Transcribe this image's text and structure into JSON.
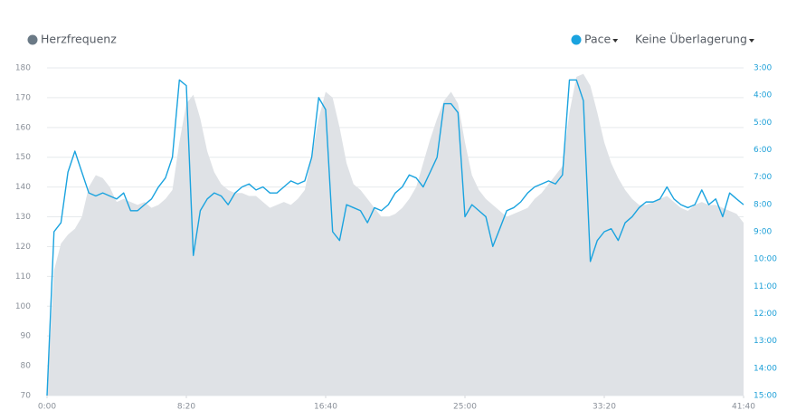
{
  "chart_data": {
    "type": "area",
    "x": [
      0,
      25,
      50,
      75,
      100,
      125,
      150,
      175,
      200,
      225,
      250,
      275,
      300,
      325,
      350,
      375,
      400,
      425,
      450,
      475,
      500,
      525,
      550,
      575,
      600,
      625,
      650,
      675,
      700,
      725,
      750,
      775,
      800,
      825,
      850,
      875,
      900,
      925,
      950,
      975,
      1000,
      1025,
      1050,
      1075,
      1100,
      1125,
      1150,
      1175,
      1200,
      1225,
      1250,
      1275,
      1300,
      1325,
      1350,
      1375,
      1400,
      1425,
      1450,
      1475,
      1500,
      1525,
      1550,
      1575,
      1600,
      1625,
      1650,
      1675,
      1700,
      1725,
      1750,
      1775,
      1800,
      1825,
      1850,
      1875,
      1900,
      1925,
      1950,
      1975,
      2000,
      2025,
      2050,
      2075,
      2100,
      2125,
      2150,
      2175,
      2200,
      2225,
      2250,
      2275,
      2300,
      2325,
      2350,
      2375,
      2400,
      2425,
      2450,
      2475,
      2500
    ],
    "series": [
      {
        "name": "Herzfrequenz",
        "type": "area",
        "color": "#dfe2e6",
        "legend_color": "#6b7a86",
        "axis": "y",
        "values": [
          70,
          112,
          121,
          124,
          126,
          130,
          140,
          144,
          143,
          140,
          135,
          136,
          135,
          134,
          135,
          133,
          134,
          136,
          139,
          155,
          168,
          171,
          163,
          152,
          145,
          141,
          139,
          138,
          138,
          137,
          137,
          135,
          133,
          134,
          135,
          134,
          136,
          139,
          150,
          163,
          172,
          170,
          160,
          148,
          141,
          139,
          136,
          133,
          130,
          130,
          131,
          133,
          136,
          140,
          148,
          156,
          163,
          169,
          172,
          168,
          155,
          144,
          139,
          136,
          134,
          132,
          130,
          131,
          132,
          133,
          136,
          138,
          141,
          144,
          147,
          165,
          177,
          178,
          174,
          165,
          155,
          148,
          143,
          139,
          136,
          134,
          134,
          135,
          136,
          137,
          135,
          133,
          132,
          134,
          135,
          134,
          134,
          133,
          132,
          131,
          128
        ]
      },
      {
        "name": "Pace",
        "type": "line",
        "color": "#1aa3df",
        "axis": "y2",
        "values": [
          15,
          9.0,
          8.67,
          6.82,
          6.05,
          6.82,
          7.58,
          7.69,
          7.58,
          7.69,
          7.8,
          7.58,
          8.23,
          8.23,
          8.01,
          7.8,
          7.36,
          7.03,
          6.27,
          3.44,
          3.65,
          9.87,
          8.23,
          7.8,
          7.58,
          7.69,
          8.01,
          7.58,
          7.36,
          7.25,
          7.47,
          7.36,
          7.58,
          7.58,
          7.36,
          7.14,
          7.25,
          7.14,
          6.27,
          4.09,
          4.53,
          9.0,
          9.32,
          8.01,
          8.12,
          8.23,
          8.67,
          8.12,
          8.23,
          8.01,
          7.58,
          7.36,
          6.92,
          7.03,
          7.36,
          6.82,
          6.27,
          4.31,
          4.31,
          4.64,
          8.45,
          8.01,
          8.23,
          8.45,
          9.54,
          8.89,
          8.23,
          8.12,
          7.91,
          7.58,
          7.36,
          7.25,
          7.14,
          7.25,
          6.92,
          3.44,
          3.44,
          4.2,
          10.09,
          9.32,
          9.0,
          8.89,
          9.32,
          8.67,
          8.45,
          8.12,
          7.91,
          7.91,
          7.8,
          7.36,
          7.8,
          8.01,
          8.12,
          8.01,
          7.47,
          8.01,
          7.8,
          8.45,
          7.58,
          7.8,
          8.01
        ]
      }
    ],
    "xlim": [
      0,
      2500
    ],
    "xticks": [
      {
        "value": 0,
        "label": "0:00"
      },
      {
        "value": 500,
        "label": "8:20"
      },
      {
        "value": 1000,
        "label": "16:40"
      },
      {
        "value": 1500,
        "label": "25:00"
      },
      {
        "value": 2000,
        "label": "33:20"
      },
      {
        "value": 2500,
        "label": "41:40"
      }
    ],
    "ylim": [
      70,
      180
    ],
    "yticks": [
      70,
      80,
      90,
      100,
      110,
      120,
      130,
      140,
      150,
      160,
      170,
      180
    ],
    "y2lim": [
      15,
      3
    ],
    "y2ticks": [
      {
        "value": 3,
        "label": "3:00"
      },
      {
        "value": 4,
        "label": "4:00"
      },
      {
        "value": 5,
        "label": "5:00"
      },
      {
        "value": 6,
        "label": "6:00"
      },
      {
        "value": 7,
        "label": "7:00"
      },
      {
        "value": 8,
        "label": "8:00"
      },
      {
        "value": 9,
        "label": "9:00"
      },
      {
        "value": 10,
        "label": "10:00"
      },
      {
        "value": 11,
        "label": "11:00"
      },
      {
        "value": 12,
        "label": "12:00"
      },
      {
        "value": 13,
        "label": "13:00"
      },
      {
        "value": 14,
        "label": "14:00"
      },
      {
        "value": 15,
        "label": "15:00"
      }
    ],
    "grid": true,
    "overlay_menu": "Keine Überlagerung"
  }
}
